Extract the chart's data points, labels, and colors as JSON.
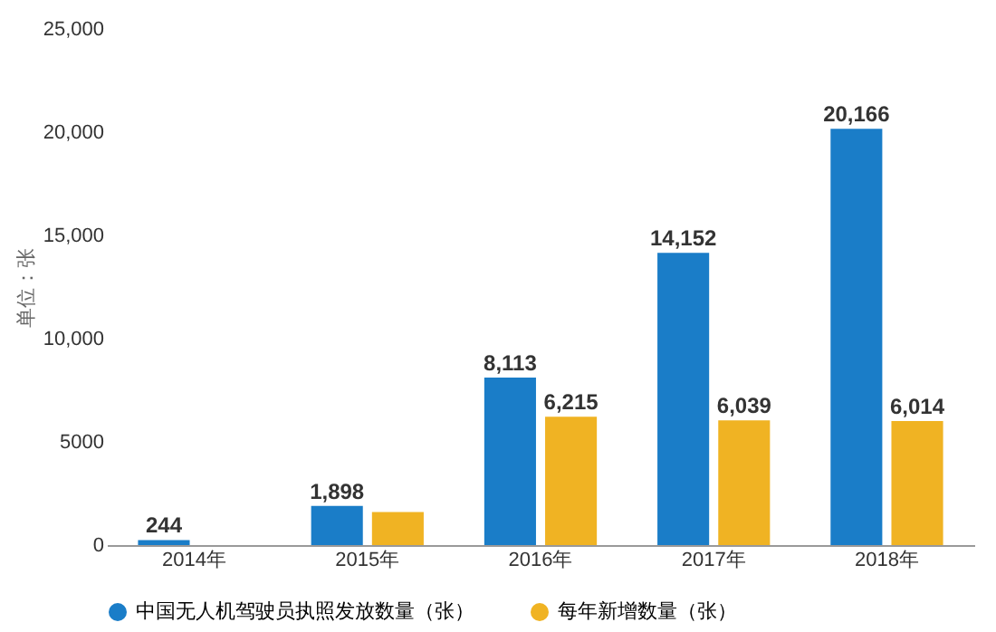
{
  "chart_data": {
    "type": "bar",
    "ylabel": "单位：张",
    "categories": [
      "2014年",
      "2015年",
      "2016年",
      "2017年",
      "2018年"
    ],
    "series": [
      {
        "name": "中国无人机驾驶员执照发放数量（张）",
        "color": "#1a7dc8",
        "values": [
          244,
          1898,
          8113,
          14152,
          20166
        ],
        "value_labels": [
          "244",
          "1,898",
          "8,113",
          "14,152",
          "20,166"
        ]
      },
      {
        "name": "每年新增数量（张）",
        "color": "#f0b323",
        "values": [
          null,
          1600,
          6215,
          6039,
          6014
        ],
        "value_labels": [
          null,
          null,
          "6,215",
          "6,039",
          "6,014"
        ]
      }
    ],
    "ylim": [
      0,
      25000
    ],
    "yticks": [
      0,
      5000,
      {
        "value": 10000,
        "label": "10,000"
      },
      {
        "value": 15000,
        "label": "15,000"
      },
      {
        "value": 20000,
        "label": "20,000"
      },
      {
        "value": 25000,
        "label": "25,000"
      }
    ],
    "grid": false,
    "legend": "bottom"
  }
}
